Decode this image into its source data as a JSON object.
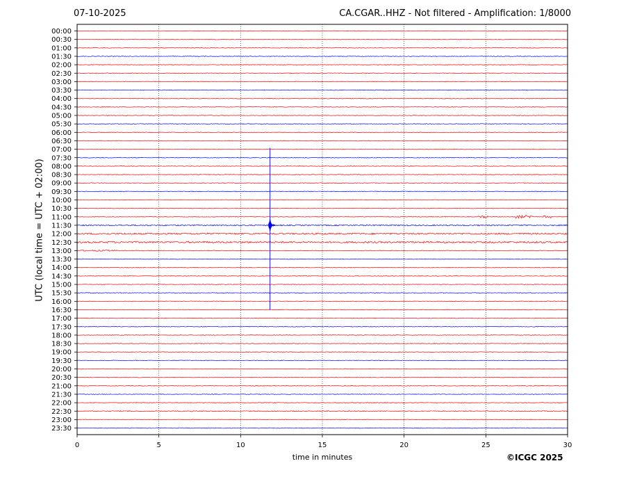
{
  "header": {
    "date": "07-10-2025",
    "title": "CA.CGAR..HHZ - Not filtered - Amplification: 1/8000"
  },
  "footer": {
    "copyright": "©ICGC 2025"
  },
  "chart_data": {
    "type": "line",
    "title": "CA.CGAR..HHZ - Not filtered - Amplification: 1/8000",
    "xlabel": "time in minutes",
    "ylabel": "UTC (local time = UTC + 02:00)",
    "xlim": [
      0,
      30
    ],
    "xticks": [
      0,
      5,
      10,
      15,
      20,
      25,
      30
    ],
    "yticks": [
      "00:00",
      "00:30",
      "01:00",
      "01:30",
      "02:00",
      "02:30",
      "03:00",
      "03:30",
      "04:00",
      "04:30",
      "05:00",
      "05:30",
      "06:00",
      "06:30",
      "07:00",
      "07:30",
      "08:00",
      "08:30",
      "09:00",
      "09:30",
      "10:00",
      "10:30",
      "11:00",
      "11:30",
      "12:00",
      "12:30",
      "13:00",
      "13:30",
      "14:00",
      "14:30",
      "15:00",
      "15:30",
      "16:00",
      "16:30",
      "17:00",
      "17:30",
      "18:00",
      "18:30",
      "19:00",
      "19:30",
      "20:00",
      "20:30",
      "21:00",
      "21:30",
      "22:00",
      "22:30",
      "23:00",
      "23:30"
    ],
    "grid": "vertical dotted at x ticks",
    "trace_colors": [
      "#ff0000",
      "#0000ff"
    ],
    "color_pattern": "red,red,red,blue repeating from 00:00",
    "noise_amplitude": 0.07,
    "noisy_traces": {
      "11:00": [
        [
          24.5,
          25.2,
          0.25
        ],
        [
          26.8,
          28.0,
          0.35
        ],
        [
          28.5,
          29.0,
          0.3
        ]
      ],
      "11:30": [
        [
          0,
          30,
          0.15
        ]
      ],
      "12:00": [
        [
          0,
          30,
          0.18
        ]
      ],
      "12:30": [
        [
          0,
          30,
          0.2
        ]
      ],
      "13:00": [
        [
          0,
          2.5,
          0.15
        ]
      ],
      "22:30": [
        [
          0,
          30,
          0.1
        ]
      ]
    },
    "event": {
      "time_minutes": 11.8,
      "trace": "11:30",
      "top_trace": "07:00",
      "bottom_trace": "16:30"
    }
  }
}
